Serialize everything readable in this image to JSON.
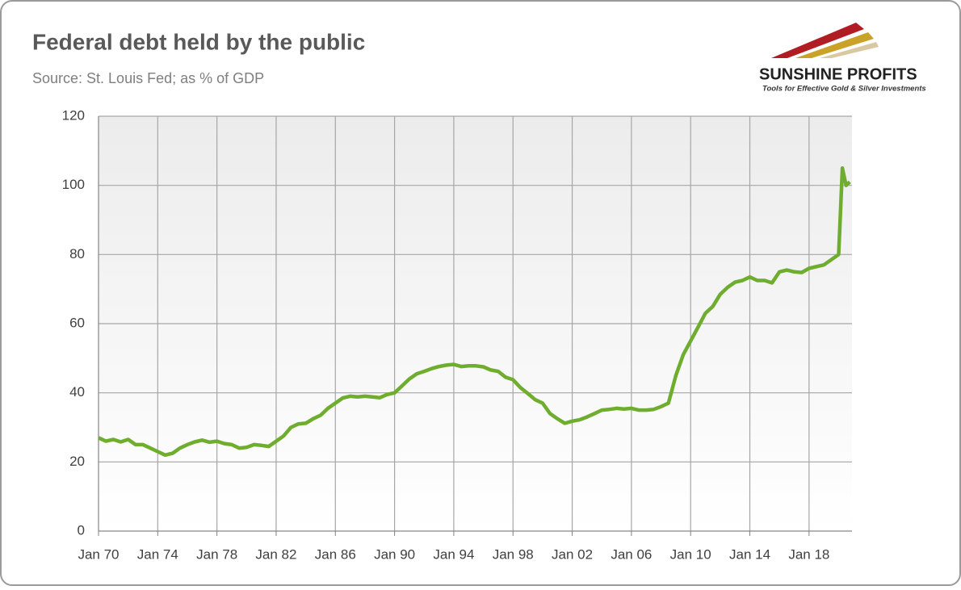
{
  "chart_data": {
    "type": "line",
    "title": "Federal debt held by the public",
    "subtitle": "Source: St. Louis Fed; as % of GDP",
    "x": [
      1970,
      1970.5,
      1971,
      1971.5,
      1972,
      1972.5,
      1973,
      1973.5,
      1974,
      1974.5,
      1975,
      1975.5,
      1976,
      1976.5,
      1977,
      1977.5,
      1978,
      1978.5,
      1979,
      1979.5,
      1980,
      1980.5,
      1981,
      1981.5,
      1982,
      1982.5,
      1983,
      1983.5,
      1984,
      1984.5,
      1985,
      1985.5,
      1986,
      1986.5,
      1987,
      1987.5,
      1988,
      1988.5,
      1989,
      1989.5,
      1990,
      1990.5,
      1991,
      1991.5,
      1992,
      1992.5,
      1993,
      1993.5,
      1994,
      1994.5,
      1995,
      1995.5,
      1996,
      1996.5,
      1997,
      1997.5,
      1998,
      1998.5,
      1999,
      1999.5,
      2000,
      2000.5,
      2001,
      2001.5,
      2002,
      2002.5,
      2003,
      2003.5,
      2004,
      2004.5,
      2005,
      2005.5,
      2006,
      2006.5,
      2007,
      2007.5,
      2008,
      2008.5,
      2009,
      2009.5,
      2010,
      2010.5,
      2011,
      2011.5,
      2012,
      2012.5,
      2013,
      2013.5,
      2014,
      2014.5,
      2015,
      2015.5,
      2016,
      2016.5,
      2017,
      2017.5,
      2018,
      2018.5,
      2019,
      2019.5,
      2020,
      2020.25,
      2020.5,
      2020.75
    ],
    "series": [
      {
        "name": "Federal debt held by the public",
        "color": "#6fad2f",
        "values": [
          27,
          26,
          26.5,
          25.8,
          26.5,
          25,
          25,
          24,
          23,
          22,
          22.5,
          24,
          25,
          25.8,
          26.3,
          25.7,
          26,
          25.3,
          25,
          24,
          24.2,
          25,
          24.8,
          24.5,
          26,
          27.5,
          30,
          31,
          31.2,
          32.5,
          33.5,
          35.5,
          37,
          38.5,
          39,
          38.8,
          39,
          38.8,
          38.6,
          39.5,
          40,
          42,
          44,
          45.5,
          46.2,
          47,
          47.6,
          48,
          48.2,
          47.6,
          47.8,
          47.8,
          47.5,
          46.6,
          46.2,
          44.5,
          43.8,
          41.5,
          39.8,
          38,
          37,
          34,
          32.5,
          31.2,
          31.8,
          32.2,
          33,
          34,
          35,
          35.2,
          35.5,
          35.3,
          35.5,
          35,
          35,
          35.2,
          36,
          37,
          45,
          51,
          55,
          59,
          63,
          65,
          68.5,
          70.5,
          72,
          72.5,
          73.5,
          72.5,
          72.5,
          71.8,
          75,
          75.5,
          75,
          74.8,
          76,
          76.5,
          77,
          78.5,
          80,
          105,
          100,
          101
        ]
      }
    ],
    "xlim": [
      1970,
      2020.9
    ],
    "xticks": [
      {
        "value": 1970,
        "label": "Jan 70"
      },
      {
        "value": 1974,
        "label": "Jan 74"
      },
      {
        "value": 1978,
        "label": "Jan 78"
      },
      {
        "value": 1982,
        "label": "Jan 82"
      },
      {
        "value": 1986,
        "label": "Jan 86"
      },
      {
        "value": 1990,
        "label": "Jan 90"
      },
      {
        "value": 1994,
        "label": "Jan 94"
      },
      {
        "value": 1998,
        "label": "Jan 98"
      },
      {
        "value": 2002,
        "label": "Jan 02"
      },
      {
        "value": 2006,
        "label": "Jan 06"
      },
      {
        "value": 2010,
        "label": "Jan 10"
      },
      {
        "value": 2014,
        "label": "Jan 14"
      },
      {
        "value": 2018,
        "label": "Jan 18"
      }
    ],
    "ylim": [
      0,
      120
    ],
    "yticks": [
      0,
      20,
      40,
      60,
      80,
      100,
      120
    ],
    "grid": true
  },
  "logo": {
    "name": "SUNSHINE PROFITS",
    "tagline": "Tools for Effective Gold & Silver Investments"
  }
}
